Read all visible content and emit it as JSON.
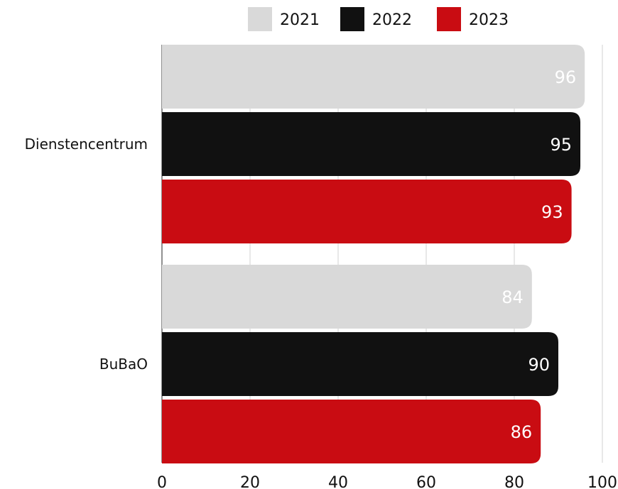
{
  "chart_data": {
    "type": "bar",
    "orientation": "horizontal",
    "categories": [
      "Dienstencentrum",
      "BuBaO"
    ],
    "series": [
      {
        "name": "2021",
        "values": [
          96,
          84
        ],
        "color": "#d9d9d9",
        "label_color": "#ffffff"
      },
      {
        "name": "2022",
        "values": [
          95,
          90
        ],
        "color": "#111111",
        "label_color": "#ffffff"
      },
      {
        "name": "2023",
        "values": [
          93,
          86
        ],
        "color": "#c90c12",
        "label_color": "#ffffff"
      }
    ],
    "xlim": [
      0,
      100
    ],
    "xticks": [
      0,
      20,
      40,
      60,
      80,
      100
    ],
    "title": "",
    "xlabel": "",
    "ylabel": "",
    "grid": true,
    "legend_position": "top"
  }
}
